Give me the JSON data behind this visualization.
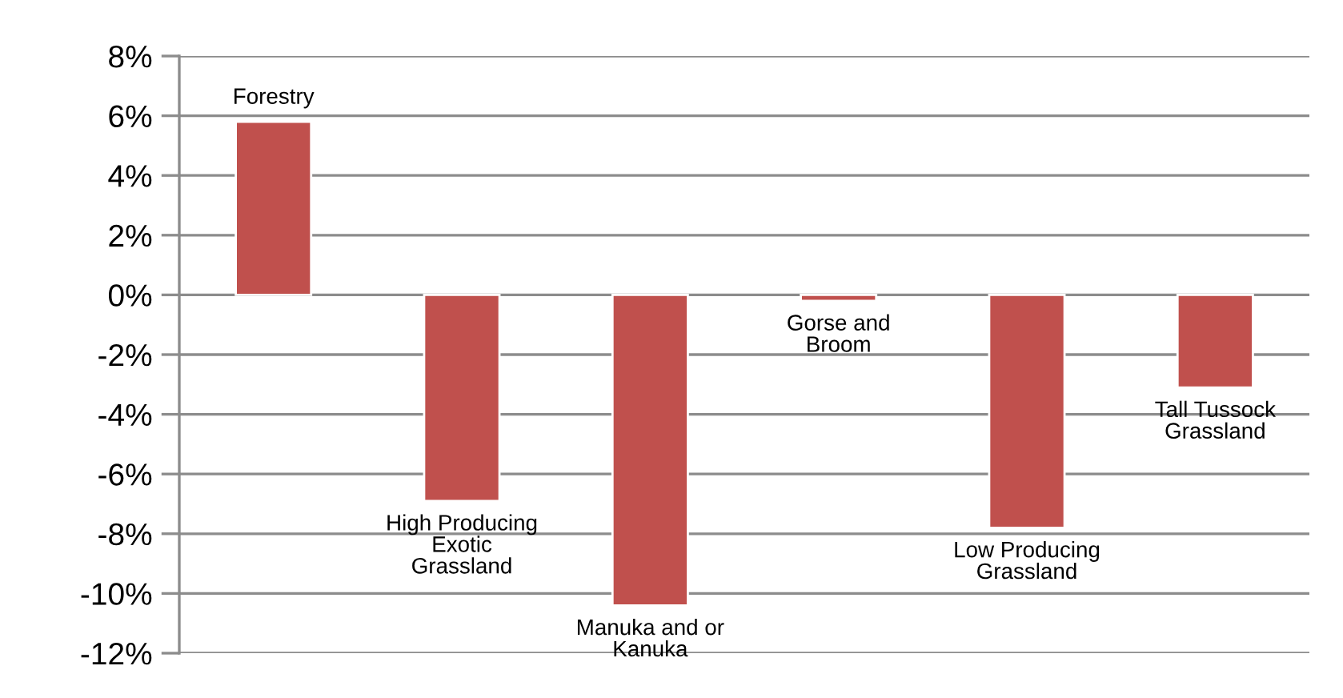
{
  "chart_data": {
    "type": "bar",
    "categories": [
      "Forestry",
      "High Producing\nExotic\nGrassland",
      "Manuka and or\nKanuka",
      "Gorse and\nBroom",
      "Low Producing\nGrassland",
      "Tall Tussock\nGrassland"
    ],
    "values": [
      5.8,
      -6.9,
      -10.4,
      -0.2,
      -7.8,
      -3.1
    ],
    "color": "#c0504d",
    "ylim": [
      -12,
      8
    ],
    "yticks": [
      {
        "value": -12,
        "label": "-12%"
      },
      {
        "value": -10,
        "label": "-10%"
      },
      {
        "value": -8,
        "label": "-8%"
      },
      {
        "value": -6,
        "label": "-6%"
      },
      {
        "value": -4,
        "label": "-4%"
      },
      {
        "value": -2,
        "label": "-2%"
      },
      {
        "value": 0,
        "label": "0%"
      },
      {
        "value": 2,
        "label": "2%"
      },
      {
        "value": 4,
        "label": "4%"
      },
      {
        "value": 6,
        "label": "6%"
      },
      {
        "value": 8,
        "label": "8%"
      }
    ],
    "grid": "y"
  }
}
